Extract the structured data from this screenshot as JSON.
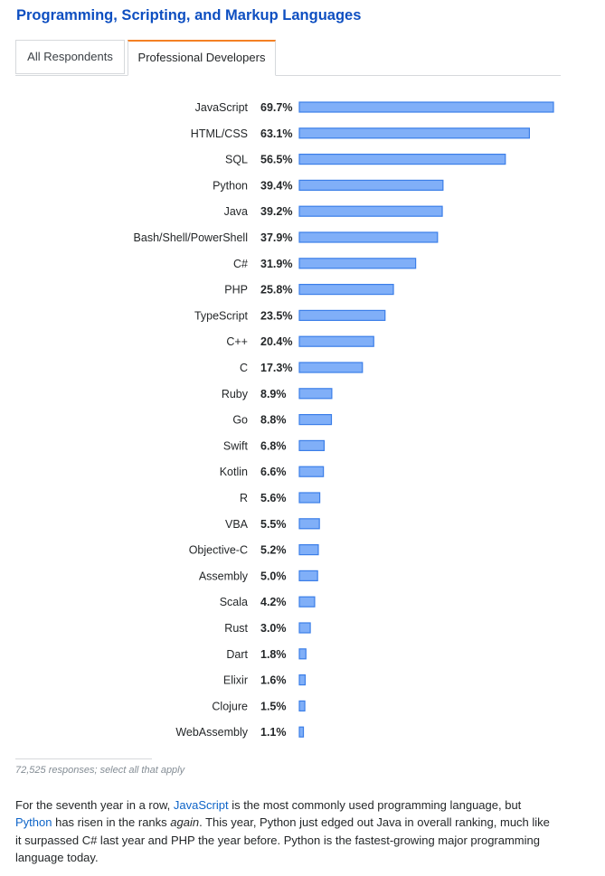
{
  "page": {
    "title": "Programming, Scripting, and Markup Languages"
  },
  "tabs": [
    {
      "label": "All Respondents",
      "active": false
    },
    {
      "label": "Professional Developers",
      "active": true
    }
  ],
  "colors": {
    "title": "#0e4fc1",
    "bar_fill": "#80aff8",
    "bar_stroke": "#3b7ee8",
    "active_tab_accent": "#f48024",
    "link": "#0e64c8"
  },
  "chart_data": {
    "type": "bar",
    "orientation": "horizontal",
    "categories": [
      "JavaScript",
      "HTML/CSS",
      "SQL",
      "Python",
      "Java",
      "Bash/Shell/PowerShell",
      "C#",
      "PHP",
      "TypeScript",
      "C++",
      "C",
      "Ruby",
      "Go",
      "Swift",
      "Kotlin",
      "R",
      "VBA",
      "Objective-C",
      "Assembly",
      "Scala",
      "Rust",
      "Dart",
      "Elixir",
      "Clojure",
      "WebAssembly"
    ],
    "values": [
      69.7,
      63.1,
      56.5,
      39.4,
      39.2,
      37.9,
      31.9,
      25.8,
      23.5,
      20.4,
      17.3,
      8.9,
      8.8,
      6.8,
      6.6,
      5.6,
      5.5,
      5.2,
      5.0,
      4.2,
      3.0,
      1.8,
      1.6,
      1.5,
      1.1
    ],
    "value_labels": [
      "69.7%",
      "63.1%",
      "56.5%",
      "39.4%",
      "39.2%",
      "37.9%",
      "31.9%",
      "25.8%",
      "23.5%",
      "20.4%",
      "17.3%",
      "8.9%",
      "8.8%",
      "6.8%",
      "6.6%",
      "5.6%",
      "5.5%",
      "5.2%",
      "5.0%",
      "4.2%",
      "3.0%",
      "1.8%",
      "1.6%",
      "1.5%",
      "1.1%"
    ],
    "unit": "%",
    "xlim": [
      0,
      69.7
    ],
    "grid": false,
    "legend": "none"
  },
  "footnote": "72,525 responses; select all that apply",
  "description": {
    "part1": "For the seventh year in a row, ",
    "link1": "JavaScript",
    "part2": " is the most commonly used programming language, but ",
    "link2": "Python",
    "part3": " has risen in the ranks ",
    "emphasis": "again",
    "part4": ". This year, Python just edged out Java in overall ranking, much like it surpassed C# last year and PHP the year before. Python is the fastest-growing major programming language today."
  }
}
